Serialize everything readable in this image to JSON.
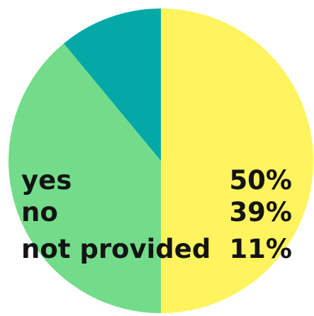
{
  "chart_data": {
    "type": "pie",
    "categories": [
      "yes",
      "no",
      "not provided"
    ],
    "values": [
      50,
      39,
      11
    ],
    "value_labels": [
      "50%",
      "39%",
      "11%"
    ],
    "colors": [
      "#FFF35E",
      "#73DC8A",
      "#04A9A7"
    ],
    "start": "12 o'clock",
    "direction": "clockwise",
    "legend_position": "inside-left, values inside-right"
  }
}
